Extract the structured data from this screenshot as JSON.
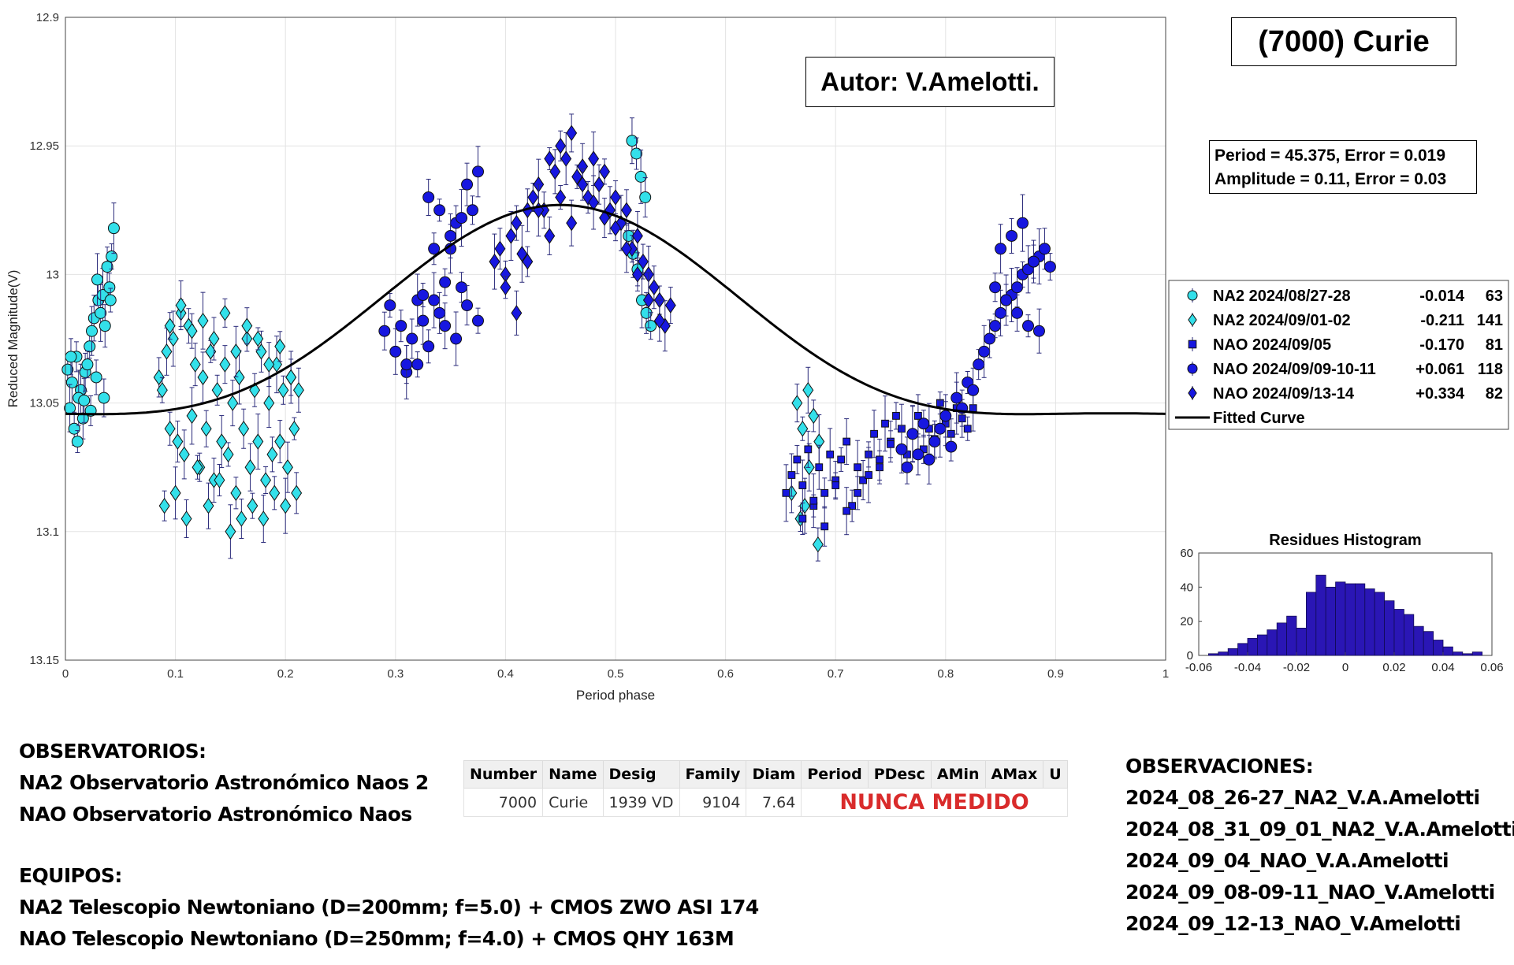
{
  "chart_data": [
    {
      "type": "scatter",
      "title": "(7000) Curie",
      "xlabel": "Period phase",
      "ylabel": "Reduced Magnitude(V)",
      "xlim": [
        0,
        1
      ],
      "ylim": [
        13.15,
        12.9
      ],
      "y_inverted": true,
      "xticks": [
        "0",
        "0.1",
        "0.2",
        "0.3",
        "0.4",
        "0.5",
        "0.6",
        "0.7",
        "0.8",
        "0.9",
        "1"
      ],
      "yticks": [
        "12.9",
        "12.95",
        "13",
        "13.05",
        "13.1",
        "13.15"
      ],
      "legend_position": "right",
      "series": [
        {
          "name": "NA2 2024/08/27-28",
          "offset": "-0.014",
          "count": "63",
          "marker": "circle",
          "color": "#33e0ea",
          "x": [
            0.002,
            0.006,
            0.01,
            0.014,
            0.018,
            0.022,
            0.026,
            0.03,
            0.034,
            0.038,
            0.042,
            0.004,
            0.008,
            0.012,
            0.016,
            0.02,
            0.024,
            0.028,
            0.032,
            0.036,
            0.04,
            0.044,
            0.005,
            0.011,
            0.017,
            0.023,
            0.029,
            0.035,
            0.041,
            0.515,
            0.519,
            0.523,
            0.527,
            0.512,
            0.516,
            0.52,
            0.524,
            0.528,
            0.532
          ],
          "y": [
            13.037,
            13.042,
            13.032,
            13.045,
            13.038,
            13.028,
            13.017,
            13.01,
            13.008,
            12.997,
            12.993,
            13.052,
            13.06,
            13.048,
            13.056,
            13.035,
            13.022,
            13.04,
            13.015,
            13.02,
            13.005,
            12.982,
            13.032,
            13.065,
            13.049,
            13.053,
            13.002,
            13.048,
            13.01,
            12.948,
            12.953,
            12.962,
            12.97,
            12.985,
            12.992,
            12.998,
            13.01,
            13.015,
            13.02
          ]
        },
        {
          "name": "NA2 2024/09/01-02",
          "offset": "-0.211",
          "count": "141",
          "marker": "diamond",
          "color": "#33e0ea",
          "x": [
            0.085,
            0.088,
            0.092,
            0.095,
            0.098,
            0.102,
            0.105,
            0.108,
            0.112,
            0.115,
            0.118,
            0.122,
            0.125,
            0.128,
            0.132,
            0.135,
            0.138,
            0.142,
            0.145,
            0.148,
            0.152,
            0.155,
            0.158,
            0.162,
            0.165,
            0.168,
            0.172,
            0.175,
            0.178,
            0.182,
            0.185,
            0.188,
            0.192,
            0.195,
            0.198,
            0.202,
            0.205,
            0.208,
            0.212,
            0.09,
            0.1,
            0.11,
            0.12,
            0.13,
            0.14,
            0.15,
            0.16,
            0.17,
            0.18,
            0.19,
            0.2,
            0.21,
            0.095,
            0.105,
            0.115,
            0.125,
            0.135,
            0.145,
            0.155,
            0.165,
            0.175,
            0.185,
            0.195,
            0.205,
            0.665,
            0.67,
            0.675,
            0.68,
            0.685,
            0.66,
            0.668,
            0.676,
            0.684,
            0.672
          ],
          "y": [
            13.04,
            13.045,
            13.03,
            13.06,
            13.025,
            13.065,
            13.015,
            13.07,
            13.02,
            13.055,
            13.035,
            13.075,
            13.04,
            13.06,
            13.03,
            13.08,
            13.045,
            13.065,
            13.035,
            13.07,
            13.05,
            13.085,
            13.04,
            13.06,
            13.025,
            13.075,
            13.045,
            13.065,
            13.03,
            13.08,
            13.05,
            13.07,
            13.035,
            13.065,
            13.045,
            13.075,
            13.04,
            13.06,
            13.045,
            13.09,
            13.085,
            13.095,
            13.075,
            13.09,
            13.08,
            13.1,
            13.095,
            13.09,
            13.095,
            13.085,
            13.09,
            13.085,
            13.02,
            13.012,
            13.022,
            13.018,
            13.025,
            13.015,
            13.03,
            13.02,
            13.025,
            13.035,
            13.028,
            13.04,
            13.05,
            13.06,
            13.045,
            13.055,
            13.065,
            13.085,
            13.095,
            13.075,
            13.105,
            13.09
          ]
        },
        {
          "name": "NAO 2024/09/05",
          "offset": "-0.170",
          "count": "81",
          "marker": "square",
          "color": "#1717e0",
          "x": [
            0.655,
            0.66,
            0.665,
            0.67,
            0.675,
            0.68,
            0.685,
            0.69,
            0.695,
            0.7,
            0.705,
            0.71,
            0.715,
            0.72,
            0.725,
            0.73,
            0.735,
            0.74,
            0.745,
            0.75,
            0.755,
            0.76,
            0.765,
            0.77,
            0.775,
            0.78,
            0.785,
            0.79,
            0.795,
            0.8,
            0.805,
            0.81,
            0.815,
            0.82,
            0.825,
            0.67,
            0.68,
            0.69,
            0.7,
            0.71,
            0.72,
            0.73,
            0.74,
            0.75
          ],
          "y": [
            13.085,
            13.078,
            13.072,
            13.082,
            13.068,
            13.09,
            13.075,
            13.085,
            13.07,
            13.08,
            13.072,
            13.065,
            13.09,
            13.075,
            13.08,
            13.07,
            13.062,
            13.075,
            13.058,
            13.065,
            13.055,
            13.06,
            13.07,
            13.062,
            13.055,
            13.068,
            13.06,
            13.064,
            13.05,
            13.058,
            13.062,
            13.052,
            13.056,
            13.06,
            13.052,
            13.095,
            13.088,
            13.098,
            13.082,
            13.092,
            13.085,
            13.078,
            13.072,
            13.066
          ]
        },
        {
          "name": "NAO 2024/09/09-10-11",
          "offset": "+0.061",
          "count": "118",
          "marker": "circle",
          "color": "#1717e0",
          "x": [
            0.29,
            0.295,
            0.3,
            0.305,
            0.31,
            0.315,
            0.32,
            0.325,
            0.33,
            0.335,
            0.34,
            0.345,
            0.35,
            0.355,
            0.36,
            0.365,
            0.37,
            0.375,
            0.33,
            0.34,
            0.35,
            0.36,
            0.32,
            0.31,
            0.325,
            0.345,
            0.335,
            0.355,
            0.365,
            0.375,
            0.76,
            0.765,
            0.77,
            0.775,
            0.78,
            0.785,
            0.79,
            0.795,
            0.8,
            0.805,
            0.81,
            0.815,
            0.82,
            0.825,
            0.83,
            0.835,
            0.84,
            0.845,
            0.85,
            0.855,
            0.86,
            0.865,
            0.87,
            0.875,
            0.88,
            0.885,
            0.89,
            0.895,
            0.85,
            0.86,
            0.87,
            0.88,
            0.845,
            0.855,
            0.865,
            0.875,
            0.885
          ],
          "y": [
            13.022,
            13.012,
            13.03,
            13.02,
            13.038,
            13.025,
            13.035,
            13.018,
            13.028,
            13.01,
            13.015,
            13.003,
            12.99,
            12.98,
            12.978,
            12.965,
            12.975,
            12.96,
            12.97,
            12.975,
            12.985,
            13.005,
            13.01,
            13.035,
            13.008,
            13.02,
            12.99,
            13.025,
            13.012,
            13.018,
            13.068,
            13.075,
            13.062,
            13.07,
            13.058,
            13.072,
            13.065,
            13.06,
            13.055,
            13.067,
            13.048,
            13.052,
            13.042,
            13.045,
            13.035,
            13.03,
            13.025,
            13.02,
            13.015,
            13.01,
            13.008,
            13.005,
            13.0,
            12.998,
            12.995,
            12.993,
            12.99,
            12.997,
            12.99,
            12.985,
            12.98,
            12.995,
            13.005,
            13.01,
            13.015,
            13.02,
            13.022
          ]
        },
        {
          "name": "NAO 2024/09/13-14",
          "offset": "+0.334",
          "count": "82",
          "marker": "diamond",
          "color": "#1717e0",
          "x": [
            0.39,
            0.395,
            0.4,
            0.405,
            0.41,
            0.415,
            0.42,
            0.425,
            0.43,
            0.435,
            0.44,
            0.445,
            0.45,
            0.455,
            0.46,
            0.465,
            0.47,
            0.475,
            0.48,
            0.485,
            0.49,
            0.495,
            0.5,
            0.505,
            0.51,
            0.515,
            0.52,
            0.525,
            0.53,
            0.535,
            0.54,
            0.545,
            0.55,
            0.4,
            0.41,
            0.42,
            0.43,
            0.44,
            0.45,
            0.46,
            0.47,
            0.48,
            0.49,
            0.5,
            0.51,
            0.52,
            0.53,
            0.54
          ],
          "y": [
            12.995,
            12.99,
            13.0,
            12.985,
            12.98,
            12.992,
            12.975,
            12.97,
            12.965,
            12.975,
            12.955,
            12.96,
            12.95,
            12.955,
            12.945,
            12.962,
            12.958,
            12.97,
            12.955,
            12.965,
            12.96,
            12.975,
            12.97,
            12.98,
            12.975,
            12.99,
            12.985,
            12.995,
            13.0,
            13.005,
            13.01,
            13.02,
            13.012,
            13.005,
            13.015,
            12.995,
            12.975,
            12.985,
            12.97,
            12.98,
            12.965,
            12.972,
            12.978,
            12.982,
            12.99,
            13.0,
            13.01,
            13.018
          ]
        }
      ],
      "fitted_curve": {
        "name": "Fitted Curve",
        "period": 45.375,
        "amplitude": 0.11,
        "mean": 13.025,
        "harmonics": [
          {
            "n": 1,
            "a": 0.0405,
            "phi_deg": 0
          },
          {
            "n": 2,
            "a": 0.0115,
            "phi_deg": 0
          }
        ]
      },
      "legend_entries": [
        {
          "label": "NA2 2024/08/27-28",
          "offset": "-0.014",
          "count": "63"
        },
        {
          "label": "NA2 2024/09/01-02",
          "offset": "-0.211",
          "count": "141"
        },
        {
          "label": "NAO 2024/09/05",
          "offset": "-0.170",
          "count": "81"
        },
        {
          "label": "NAO 2024/09/09-10-11",
          "offset": "+0.061",
          "count": "118"
        },
        {
          "label": "NAO 2024/09/13-14",
          "offset": "+0.334",
          "count": "82"
        },
        {
          "label": "Fitted Curve",
          "offset": "",
          "count": ""
        }
      ]
    },
    {
      "type": "bar",
      "title": "Residues Histogram",
      "xlim": [
        -0.06,
        0.06
      ],
      "ylim": [
        0,
        60
      ],
      "xticks": [
        "-0.06",
        "-0.04",
        "-0.02",
        "0",
        "0.02",
        "0.04",
        "0.06"
      ],
      "yticks": [
        "0",
        "20",
        "40",
        "60"
      ],
      "bin_width": 0.004,
      "bin_centers": [
        -0.054,
        -0.05,
        -0.046,
        -0.042,
        -0.038,
        -0.034,
        -0.03,
        -0.026,
        -0.022,
        -0.018,
        -0.014,
        -0.01,
        -0.006,
        -0.002,
        0.002,
        0.006,
        0.01,
        0.014,
        0.018,
        0.022,
        0.026,
        0.03,
        0.034,
        0.038,
        0.042,
        0.046,
        0.05,
        0.054
      ],
      "values": [
        1,
        2,
        4,
        7,
        10,
        12,
        15,
        19,
        23,
        16,
        37,
        47,
        40,
        43,
        42,
        42,
        39,
        37,
        32,
        27,
        24,
        17,
        14,
        9,
        5,
        2,
        1,
        2
      ],
      "color": "#2a16b5"
    }
  ],
  "header": {
    "title": "(7000) Curie",
    "author": "Autor: V.Amelotti.",
    "period_line": "Period =  45.375, Error = 0.019",
    "amplitude_line": "Amplitude = 0.11, Error = 0.03"
  },
  "observatorios": {
    "heading": "OBSERVATORIOS:",
    "lines": [
      "NA2 Observatorio Astronómico Naos 2",
      "NAO Observatorio Astronómico Naos"
    ]
  },
  "equipos": {
    "heading": "EQUIPOS:",
    "lines": [
      "NA2 Telescopio Newtoniano (D=200mm; f=5.0) + CMOS ZWO ASI 174",
      "NAO Telescopio Newtoniano (D=250mm; f=4.0) + CMOS QHY 163M"
    ]
  },
  "observaciones": {
    "heading": "OBSERVACIONES:",
    "lines": [
      "2024_08_26-27_NA2_V.A.Amelotti",
      "2024_08_31_09_01_NA2_V.A.Amelotti",
      "2024_09_04_NAO_V.A.Amelotti",
      "2024_09_08-09-11_NAO_V.Amelotti",
      "2024_09_12-13_NAO_V.Amelotti"
    ]
  },
  "table": {
    "headers": [
      "Number",
      "Name",
      "Desig",
      "Family",
      "Diam",
      "Period",
      "PDesc",
      "AMin",
      "AMax",
      "U"
    ],
    "row": {
      "number": "7000",
      "name": "Curie",
      "desig": "1939 VD",
      "family": "9104",
      "diam": "7.64",
      "status": "NUNCA MEDIDO"
    }
  }
}
